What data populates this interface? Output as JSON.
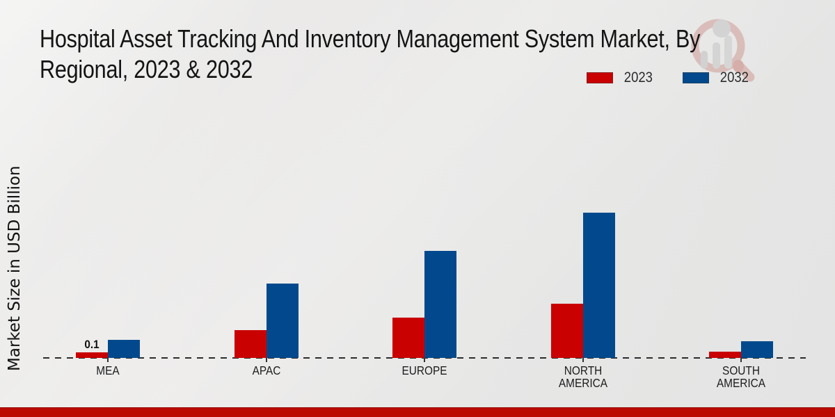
{
  "title": {
    "line1": "Hospital Asset Tracking And Inventory Management System Market, By",
    "line2": "Regional, 2023 & 2032"
  },
  "ylabel": "Market Size in USD Billion",
  "legend": [
    {
      "label": "2023",
      "color": "#c90101"
    },
    {
      "label": "2032",
      "color": "#01498c"
    }
  ],
  "colors": {
    "series_2023": "#c90101",
    "series_2032": "#01498c",
    "footer_accent": "#bb0b01",
    "axis": "#2c2c2c",
    "background": "#e9e9e8"
  },
  "watermark": {
    "name": "magnifier-bar-chart-logo"
  },
  "chart_data": {
    "type": "bar",
    "title": "Hospital Asset Tracking And Inventory Management System Market, By Regional, 2023 & 2032",
    "categories": [
      "MEA",
      "APAC",
      "EUROPE",
      "NORTH\nAMERICA",
      "SOUTH\nAMERICA"
    ],
    "series": [
      {
        "name": "2023",
        "color": "#c90101",
        "values": [
          0.1,
          0.5,
          0.72,
          0.98,
          0.11
        ]
      },
      {
        "name": "2032",
        "color": "#01498c",
        "values": [
          0.33,
          1.34,
          1.92,
          2.61,
          0.3
        ]
      }
    ],
    "annotations": [
      {
        "category": "MEA",
        "series": "2023",
        "text": "0.1"
      }
    ],
    "xlabel": "",
    "ylabel": "Market Size in USD Billion",
    "ylim": [
      0,
      3
    ],
    "grid": false,
    "legend_position": "top-right",
    "baseline_style": "dashed"
  }
}
